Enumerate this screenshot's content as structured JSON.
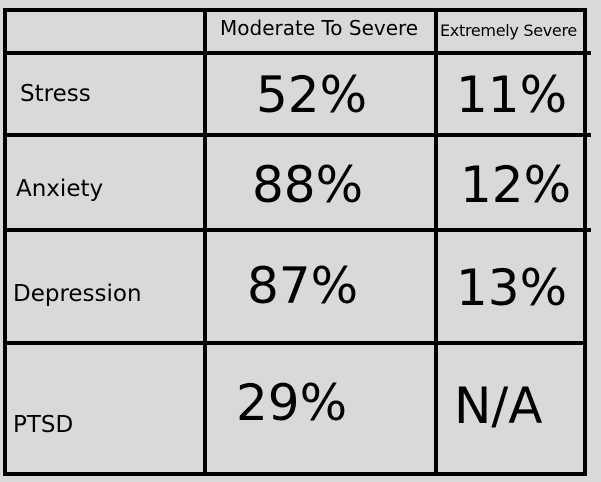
{
  "table": {
    "columns": [
      "",
      "Moderate To Severe",
      "Extremely Severe"
    ],
    "rows": [
      {
        "label": "Stress",
        "moderate_to_severe": "52%",
        "extremely_severe": "11%"
      },
      {
        "label": "Anxiety",
        "moderate_to_severe": "88%",
        "extremely_severe": "12%"
      },
      {
        "label": "Depression",
        "moderate_to_severe": "87%",
        "extremely_severe": "13%"
      },
      {
        "label": "PTSD",
        "moderate_to_severe": "29%",
        "extremely_severe": "N/A"
      }
    ]
  },
  "colors": {
    "background": "#d9d9d9",
    "border": "#000000",
    "text": "#000000"
  }
}
